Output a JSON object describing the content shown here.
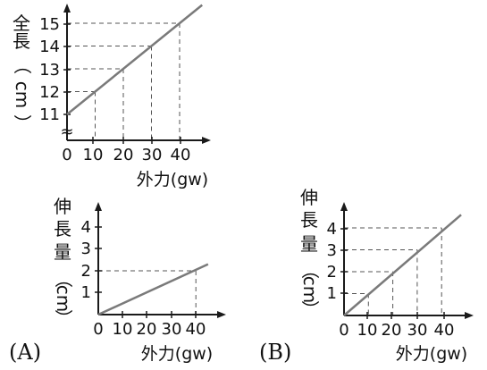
{
  "colors": {
    "axis": "#1a1a1a",
    "line": "#7a7a7a",
    "guide": "#555555",
    "text": "#111111"
  },
  "chart_data": [
    {
      "id": "top",
      "type": "line",
      "xlabel": "外力(gw)",
      "ylabel": [
        "全",
        "長",
        "（",
        "cm",
        "）"
      ],
      "x_ticks": [
        0,
        10,
        20,
        30,
        40
      ],
      "y_ticks": [
        11,
        12,
        13,
        14,
        15
      ],
      "xlim": [
        0,
        48
      ],
      "ylim": [
        11,
        15.8
      ],
      "axis_break": "≈",
      "series": [
        {
          "x": [
            0,
            48
          ],
          "y": [
            11,
            15.8
          ]
        }
      ],
      "guides": [
        {
          "x": 10,
          "y": 12
        },
        {
          "x": 20,
          "y": 13
        },
        {
          "x": 30,
          "y": 14
        },
        {
          "x": 40,
          "y": 15
        }
      ]
    },
    {
      "id": "A",
      "option_label": "(A)",
      "type": "line",
      "xlabel": "外力(gw)",
      "ylabel": [
        "伸",
        "長",
        "量",
        "（",
        "cm",
        "）"
      ],
      "x_ticks": [
        0,
        10,
        20,
        30,
        40
      ],
      "y_ticks": [
        1,
        2,
        3,
        4
      ],
      "xlim": [
        0,
        45
      ],
      "ylim": [
        0,
        4.6
      ],
      "series": [
        {
          "x": [
            0,
            45
          ],
          "y": [
            0,
            2.3
          ]
        }
      ],
      "guides": [
        {
          "x": 40,
          "y": 2
        }
      ]
    },
    {
      "id": "B",
      "option_label": "(B)",
      "type": "line",
      "xlabel": "外力(gw)",
      "ylabel": [
        "伸",
        "長",
        "量",
        "（",
        "cm",
        "）"
      ],
      "x_ticks": [
        0,
        10,
        20,
        30,
        40
      ],
      "y_ticks": [
        1,
        2,
        3,
        4
      ],
      "xlim": [
        0,
        48
      ],
      "ylim": [
        0,
        4.6
      ],
      "series": [
        {
          "x": [
            0,
            48
          ],
          "y": [
            0,
            4.6
          ]
        }
      ],
      "guides": [
        {
          "x": 10,
          "y": 1
        },
        {
          "x": 20,
          "y": 2
        },
        {
          "x": 30,
          "y": 3
        },
        {
          "x": 40,
          "y": 4
        }
      ]
    }
  ]
}
